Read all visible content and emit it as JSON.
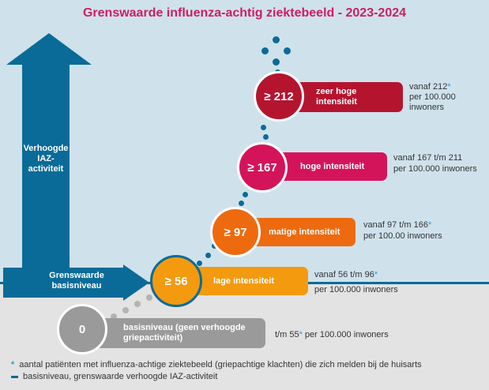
{
  "title": "Grenswaarde influenza-achtig ziektebeeld - 2023-2024",
  "side_arrow": {
    "label": "Verhoogde IAZ-activiteit"
  },
  "baseline_arrow": {
    "label": "Grenswaarde basisniveau"
  },
  "levels": [
    {
      "circle": "0",
      "label": "basisniveau (geen verhoogde griepactiviteit)",
      "range": "t/m 55",
      "range_suffix": " per 100.000 inwoners",
      "color": "#9a9a9a"
    },
    {
      "circle": "≥ 56",
      "label": "lage intensiteit",
      "range": "vanaf 56 t/m 96",
      "range_suffix": "per 100.000 inwoners",
      "color": "#f39a0f"
    },
    {
      "circle": "≥ 97",
      "label": "matige intensiteit",
      "range": "vanaf 97 t/m 166",
      "range_suffix": "per 100.00 inwoners",
      "color": "#ee6a0f"
    },
    {
      "circle": "≥ 167",
      "label": "hoge intensiteit",
      "range": "vanaf 167 t/m 211",
      "range_suffix": "per 100.000 inwoners",
      "color": "#d4145a"
    },
    {
      "circle": "≥ 212",
      "label": "zeer hoge intensiteit",
      "range": "vanaf 212",
      "range_suffix": "per 100.000 inwoners",
      "color": "#b5142f"
    }
  ],
  "footnotes": {
    "star_symbol": "*",
    "star_text": "aantal patiënten met influenza-achtige ziektebeeld (griepachtige klachten) die zich melden bij de huisarts",
    "line_text": "basisniveau, grenswaarde verhoogde IAZ-activiteit"
  },
  "colors": {
    "arrow": "#0a6b98",
    "title": "#cc1f5f",
    "star": "#2a9dd6",
    "background": "#cfe2ec"
  }
}
